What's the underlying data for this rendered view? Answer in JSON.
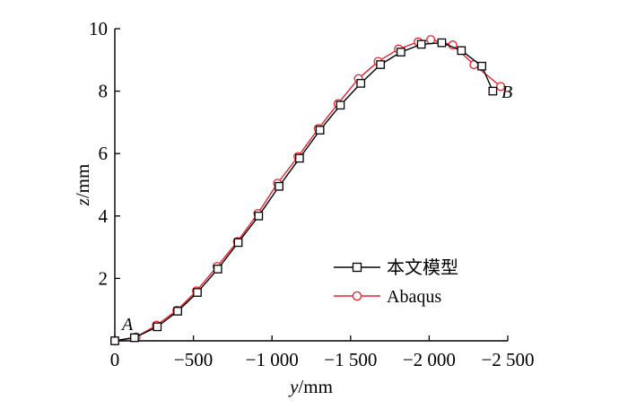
{
  "chart_data": {
    "type": "line",
    "title": "",
    "xlabel_var": "y",
    "xlabel_unit": "/mm",
    "ylabel_var": "z",
    "ylabel_unit": "/mm",
    "xlim": [
      0,
      -2500
    ],
    "ylim": [
      0,
      10
    ],
    "x_ticks": [
      {
        "value": 0,
        "label": "0"
      },
      {
        "value": -500,
        "label": "−500"
      },
      {
        "value": -1000,
        "label": "−1 000"
      },
      {
        "value": -1500,
        "label": "−1 500"
      },
      {
        "value": -2000,
        "label": "−2 000"
      },
      {
        "value": -2500,
        "label": "−2 500"
      }
    ],
    "y_ticks": [
      {
        "value": 2,
        "label": "2"
      },
      {
        "value": 4,
        "label": "4"
      },
      {
        "value": 6,
        "label": "6"
      },
      {
        "value": 8,
        "label": "8"
      },
      {
        "value": 10,
        "label": "10"
      }
    ],
    "grid": false,
    "legend_position": "lower-right",
    "point_labels": {
      "start": "A",
      "end": "B"
    },
    "series": [
      {
        "name": "本文模型",
        "color": "#000000",
        "marker": "square",
        "x": [
          0,
          -125,
          -270,
          -400,
          -525,
          -655,
          -785,
          -915,
          -1045,
          -1175,
          -1305,
          -1435,
          -1565,
          -1690,
          -1820,
          -1950,
          -2080,
          -2205,
          -2335,
          -2405
        ],
        "y": [
          0,
          0.1,
          0.45,
          0.95,
          1.55,
          2.3,
          3.15,
          4.0,
          4.95,
          5.85,
          6.75,
          7.55,
          8.25,
          8.85,
          9.25,
          9.5,
          9.55,
          9.3,
          8.8,
          8.0
        ]
      },
      {
        "name": "Abaqus",
        "color": "#e8202a",
        "marker": "circle",
        "x": [
          0,
          -135,
          -265,
          -395,
          -520,
          -650,
          -780,
          -910,
          -1035,
          -1165,
          -1295,
          -1420,
          -1550,
          -1675,
          -1805,
          -1930,
          -2010,
          -2150,
          -2285,
          -2455
        ],
        "y": [
          0,
          0.12,
          0.5,
          0.98,
          1.6,
          2.38,
          3.18,
          4.08,
          5.05,
          5.9,
          6.8,
          7.6,
          8.4,
          8.95,
          9.35,
          9.58,
          9.65,
          9.48,
          8.85,
          8.15
        ]
      }
    ]
  }
}
